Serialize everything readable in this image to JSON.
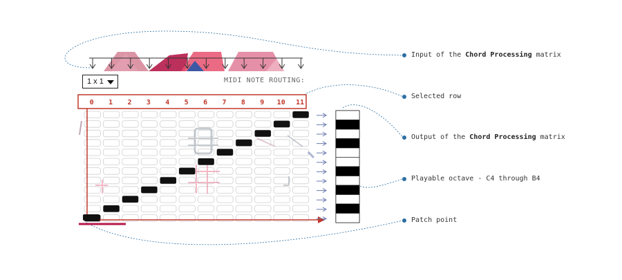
{
  "matrix": {
    "dropdown_value": "1 x 1",
    "routing_label": "MIDI NOTE ROUTING:",
    "columns": [
      "0",
      "1",
      "2",
      "3",
      "4",
      "5",
      "6",
      "7",
      "8",
      "9",
      "10",
      "11"
    ],
    "rows": 12,
    "diagonal_patches": [
      {
        "row": 0,
        "col": 11
      },
      {
        "row": 1,
        "col": 10
      },
      {
        "row": 2,
        "col": 9
      },
      {
        "row": 3,
        "col": 8
      },
      {
        "row": 4,
        "col": 7
      },
      {
        "row": 5,
        "col": 6
      },
      {
        "row": 6,
        "col": 5
      },
      {
        "row": 7,
        "col": 4
      },
      {
        "row": 8,
        "col": 3
      },
      {
        "row": 9,
        "col": 2
      },
      {
        "row": 10,
        "col": 1
      },
      {
        "row": 11,
        "col": 0
      }
    ],
    "accent_color": "#c0392b",
    "patch_color": "#b5194a"
  },
  "keyboard": {
    "label": "Playable octave - C4 through B4"
  },
  "callouts": [
    {
      "id": "input",
      "prefix": "Input of the ",
      "bold": "Chord Processing",
      "suffix": " matrix"
    },
    {
      "id": "selected-row",
      "prefix": "Selected row",
      "bold": "",
      "suffix": ""
    },
    {
      "id": "output",
      "prefix": "Output of the ",
      "bold": "Chord Processing",
      "suffix": " matrix"
    },
    {
      "id": "octave",
      "prefix": "Playable octave - C4 through B4",
      "bold": "",
      "suffix": ""
    },
    {
      "id": "patch-point",
      "prefix": "Patch point",
      "bold": "",
      "suffix": ""
    }
  ]
}
